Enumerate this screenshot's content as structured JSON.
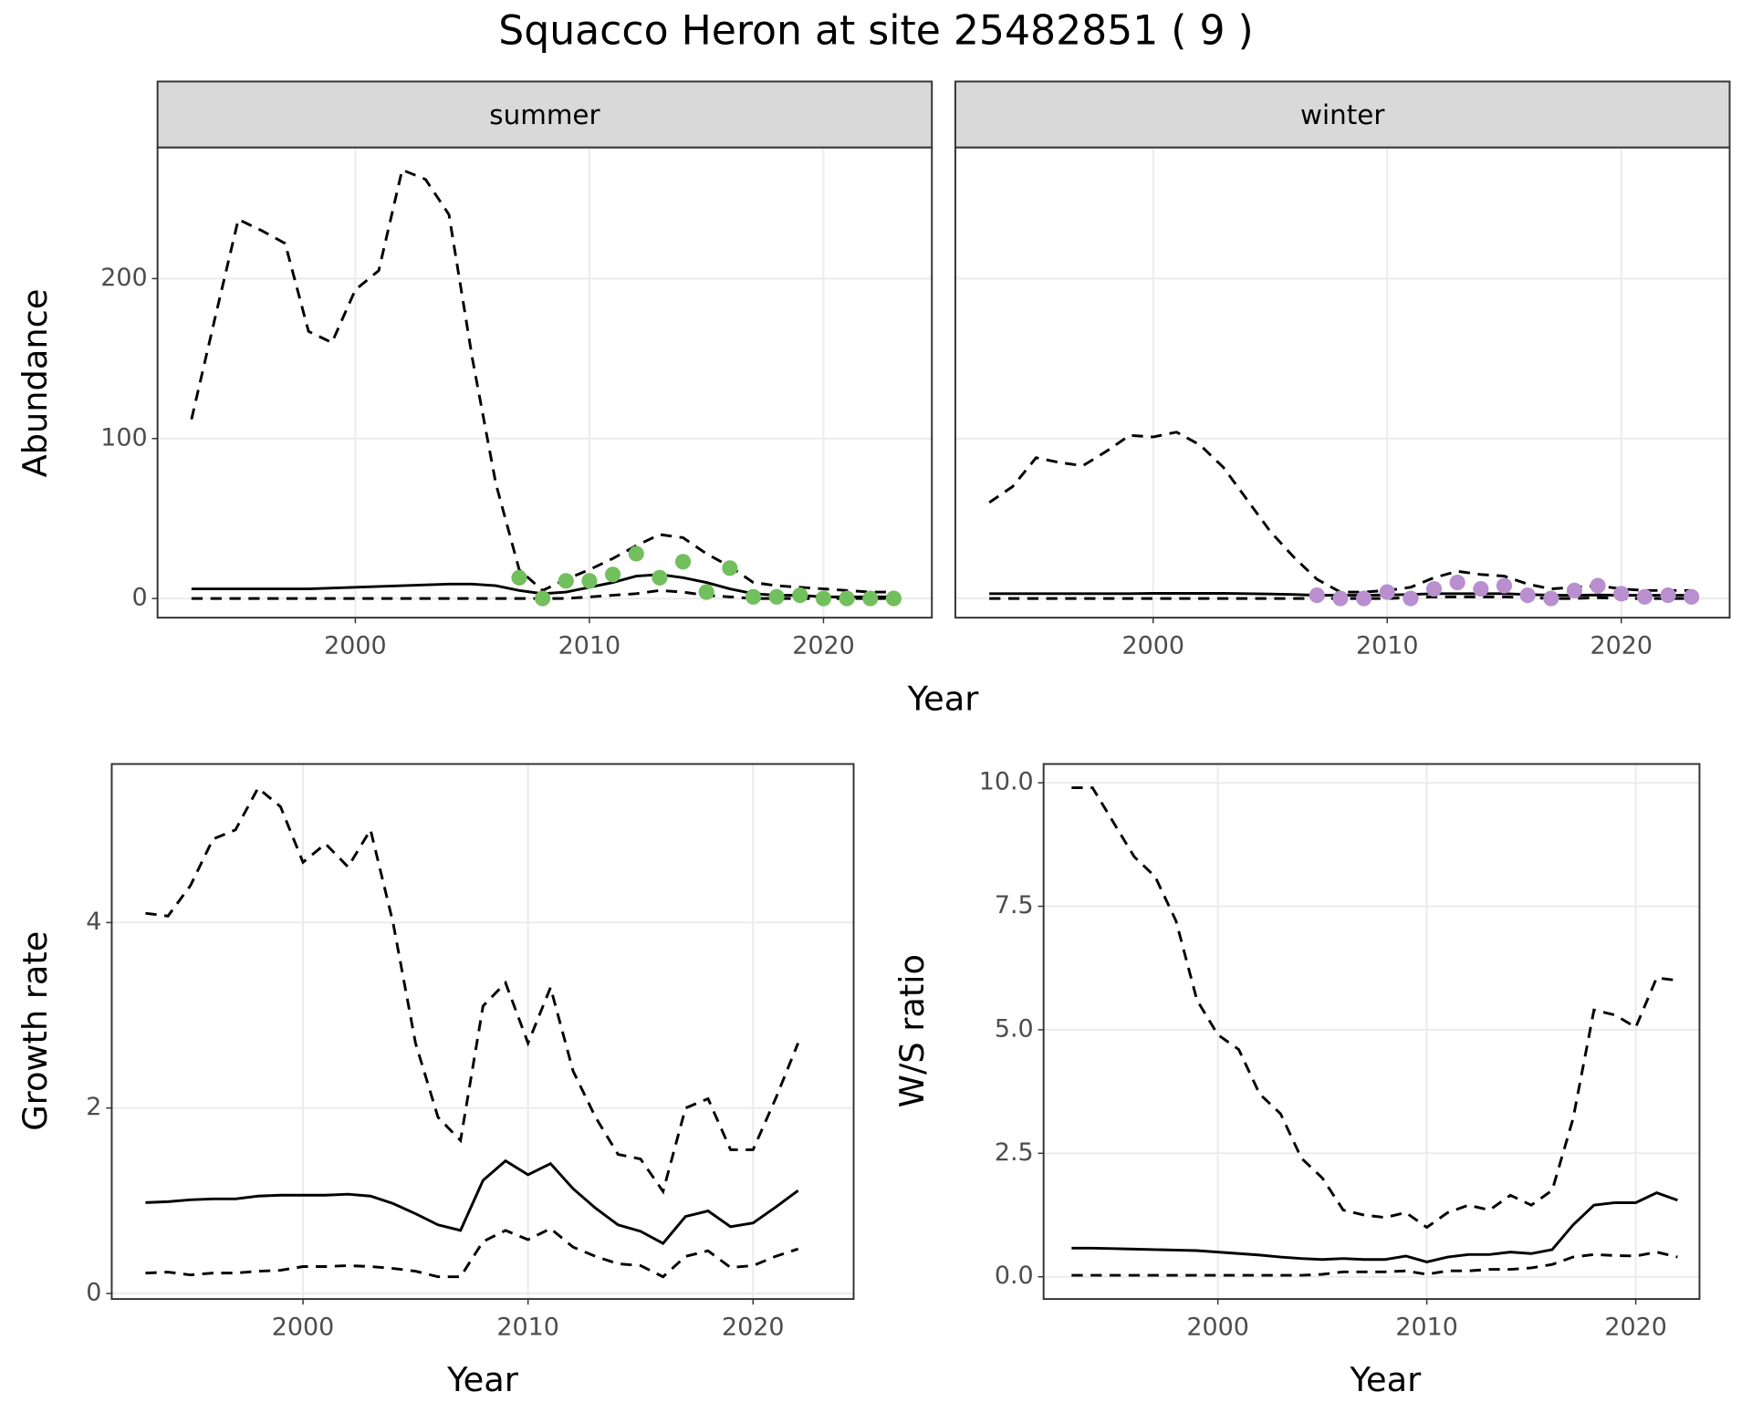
{
  "title": "Squacco Heron at site 25482851 ( 9 )",
  "chart_data": [
    {
      "type": "line",
      "facet": "summer",
      "xlabel": "Year",
      "ylabel": "Abundance",
      "xlim": [
        1991.55,
        2024.63
      ],
      "xticks": [
        2000,
        2010,
        2020
      ],
      "ylim": [
        -12,
        282
      ],
      "yticks": [
        0,
        100,
        200
      ],
      "grid": true,
      "x": [
        1993,
        1994,
        1995,
        1996,
        1997,
        1998,
        1999,
        2000,
        2001,
        2002,
        2003,
        2004,
        2005,
        2006,
        2007,
        2008,
        2009,
        2010,
        2011,
        2012,
        2013,
        2014,
        2015,
        2016,
        2017,
        2018,
        2019,
        2020,
        2021,
        2022,
        2023
      ],
      "series": [
        {
          "style": "dashed",
          "color": "#000000",
          "values": [
            112,
            175,
            237,
            230,
            222,
            167,
            160,
            193,
            205,
            268,
            262,
            240,
            150,
            72,
            18,
            5,
            12,
            18,
            25,
            33,
            40,
            38,
            28,
            20,
            10,
            8,
            7,
            6,
            5,
            4,
            4
          ]
        },
        {
          "style": "solid",
          "color": "#000000",
          "values": [
            6,
            6,
            6,
            6,
            6,
            6,
            6.5,
            7,
            7.5,
            8,
            8.5,
            9,
            9,
            8,
            5,
            3,
            4,
            7,
            10,
            14,
            15,
            13,
            10,
            6,
            3,
            2,
            2,
            1,
            1,
            1,
            1
          ]
        },
        {
          "style": "dashed",
          "color": "#000000",
          "values": [
            0,
            0,
            0,
            0,
            0,
            0,
            0,
            0,
            0,
            0,
            0,
            0,
            0,
            0,
            0,
            0,
            0,
            1,
            2,
            3,
            5,
            4,
            2,
            1,
            0,
            0,
            0,
            0,
            0,
            0,
            0
          ]
        }
      ],
      "points": {
        "color": "#71bf5d",
        "x": [
          2007,
          2008,
          2009,
          2010,
          2011,
          2012,
          2013,
          2014,
          2015,
          2016,
          2017,
          2018,
          2019,
          2020,
          2021,
          2022,
          2023
        ],
        "values": [
          13,
          0,
          11,
          11,
          15,
          28,
          13,
          23,
          4,
          19,
          1,
          1,
          2,
          0,
          0,
          0,
          0
        ]
      }
    },
    {
      "type": "line",
      "facet": "winter",
      "sharey": true,
      "xlim": [
        1991.55,
        2024.63
      ],
      "xticks": [
        2000,
        2010,
        2020
      ],
      "grid": true,
      "x": [
        1993,
        1994,
        1995,
        1996,
        1997,
        1998,
        1999,
        2000,
        2001,
        2002,
        2003,
        2004,
        2005,
        2006,
        2007,
        2008,
        2009,
        2010,
        2011,
        2012,
        2013,
        2014,
        2015,
        2016,
        2017,
        2018,
        2019,
        2020,
        2021,
        2022,
        2023
      ],
      "series": [
        {
          "style": "dashed",
          "color": "#000000",
          "values": [
            60,
            70,
            88,
            85,
            83,
            92,
            102,
            101,
            104,
            96,
            82,
            62,
            42,
            26,
            12,
            4,
            4,
            5,
            7,
            13,
            17,
            15,
            14,
            9,
            6,
            7,
            8,
            6,
            5,
            5,
            5
          ]
        },
        {
          "style": "solid",
          "color": "#000000",
          "values": [
            3,
            3,
            3,
            3,
            3,
            3,
            3,
            3.2,
            3.2,
            3.2,
            3.2,
            3,
            2.8,
            2.5,
            2,
            2,
            2,
            2.2,
            2.5,
            3,
            3,
            3,
            3,
            2.5,
            2,
            2,
            2.2,
            2,
            2,
            2,
            2
          ]
        },
        {
          "style": "dashed",
          "color": "#000000",
          "values": [
            0,
            0,
            0,
            0,
            0,
            0,
            0,
            0,
            0,
            0,
            0,
            0,
            0,
            0,
            0,
            0,
            0,
            0,
            0.5,
            1,
            1,
            1,
            1,
            0.5,
            0,
            0,
            0.5,
            0,
            0,
            0,
            0
          ]
        }
      ],
      "points": {
        "color": "#b98fd0",
        "x": [
          2007,
          2008,
          2009,
          2010,
          2011,
          2012,
          2013,
          2014,
          2015,
          2016,
          2017,
          2018,
          2019,
          2020,
          2021,
          2022,
          2023
        ],
        "values": [
          2,
          0,
          0,
          4,
          0,
          6,
          10,
          6,
          8,
          2,
          0,
          5,
          8,
          3,
          1,
          2,
          1
        ]
      }
    },
    {
      "type": "line",
      "xlabel": "Year",
      "ylabel": "Growth rate",
      "xlim": [
        1991.5,
        2024.47
      ],
      "xticks": [
        2000,
        2010,
        2020
      ],
      "ylim": [
        -0.06,
        5.71
      ],
      "yticks": [
        0,
        2,
        4
      ],
      "grid": true,
      "x": [
        1993,
        1994,
        1995,
        1996,
        1997,
        1998,
        1999,
        2000,
        2001,
        2002,
        2003,
        2004,
        2005,
        2006,
        2007,
        2008,
        2009,
        2010,
        2011,
        2012,
        2013,
        2014,
        2015,
        2016,
        2017,
        2018,
        2019,
        2020,
        2021,
        2022
      ],
      "series": [
        {
          "style": "dashed",
          "color": "#000000",
          "values": [
            4.1,
            4.07,
            4.4,
            4.9,
            5.0,
            5.45,
            5.25,
            4.65,
            4.85,
            4.6,
            5.0,
            4.0,
            2.7,
            1.9,
            1.65,
            3.1,
            3.35,
            2.7,
            3.3,
            2.4,
            1.9,
            1.5,
            1.45,
            1.1,
            2.0,
            2.1,
            1.55,
            1.55,
            2.1,
            2.7
          ]
        },
        {
          "style": "solid",
          "color": "#000000",
          "values": [
            0.98,
            0.99,
            1.01,
            1.02,
            1.02,
            1.05,
            1.06,
            1.06,
            1.06,
            1.07,
            1.05,
            0.97,
            0.86,
            0.74,
            0.68,
            1.22,
            1.43,
            1.28,
            1.4,
            1.13,
            0.92,
            0.74,
            0.67,
            0.54,
            0.83,
            0.89,
            0.72,
            0.76,
            0.93,
            1.11
          ]
        },
        {
          "style": "dashed",
          "color": "#000000",
          "values": [
            0.22,
            0.23,
            0.2,
            0.22,
            0.22,
            0.24,
            0.25,
            0.29,
            0.29,
            0.3,
            0.29,
            0.27,
            0.24,
            0.18,
            0.18,
            0.56,
            0.68,
            0.58,
            0.7,
            0.5,
            0.4,
            0.32,
            0.3,
            0.18,
            0.4,
            0.46,
            0.28,
            0.3,
            0.4,
            0.48
          ]
        }
      ]
    },
    {
      "type": "line",
      "xlabel": "Year",
      "ylabel": "W/S ratio",
      "xlim": [
        1991.66,
        2023.05
      ],
      "xticks": [
        2000,
        2010,
        2020
      ],
      "ylim": [
        -0.45,
        10.38
      ],
      "yticks": [
        {
          "value": 0,
          "label": "0.0"
        },
        {
          "value": 2.5,
          "label": "2.5"
        },
        {
          "value": 5,
          "label": "5.0"
        },
        {
          "value": 7.5,
          "label": "7.5"
        },
        {
          "value": 10,
          "label": "10.0"
        }
      ],
      "grid": true,
      "x": [
        1993,
        1994,
        1995,
        1996,
        1997,
        1998,
        1999,
        2000,
        2001,
        2002,
        2003,
        2004,
        2005,
        2006,
        2007,
        2008,
        2009,
        2010,
        2011,
        2012,
        2013,
        2014,
        2015,
        2016,
        2017,
        2018,
        2019,
        2020,
        2021,
        2022
      ],
      "series": [
        {
          "style": "dashed",
          "color": "#000000",
          "values": [
            9.9,
            9.9,
            9.2,
            8.5,
            8.1,
            7.2,
            5.6,
            4.9,
            4.6,
            3.7,
            3.3,
            2.4,
            2.0,
            1.35,
            1.25,
            1.2,
            1.3,
            1.0,
            1.3,
            1.45,
            1.35,
            1.65,
            1.45,
            1.75,
            3.2,
            5.4,
            5.3,
            5.05,
            6.05,
            6.0
          ]
        },
        {
          "style": "solid",
          "color": "#000000",
          "values": [
            0.58,
            0.58,
            0.57,
            0.56,
            0.55,
            0.54,
            0.53,
            0.5,
            0.47,
            0.44,
            0.4,
            0.37,
            0.35,
            0.37,
            0.35,
            0.35,
            0.42,
            0.3,
            0.4,
            0.45,
            0.45,
            0.5,
            0.47,
            0.55,
            1.05,
            1.45,
            1.5,
            1.5,
            1.7,
            1.55
          ]
        },
        {
          "style": "dashed",
          "color": "#000000",
          "values": [
            0.03,
            0.03,
            0.03,
            0.03,
            0.03,
            0.03,
            0.03,
            0.03,
            0.03,
            0.03,
            0.03,
            0.03,
            0.05,
            0.1,
            0.1,
            0.1,
            0.12,
            0.05,
            0.12,
            0.12,
            0.15,
            0.15,
            0.18,
            0.25,
            0.4,
            0.45,
            0.43,
            0.42,
            0.5,
            0.4
          ]
        }
      ]
    }
  ]
}
